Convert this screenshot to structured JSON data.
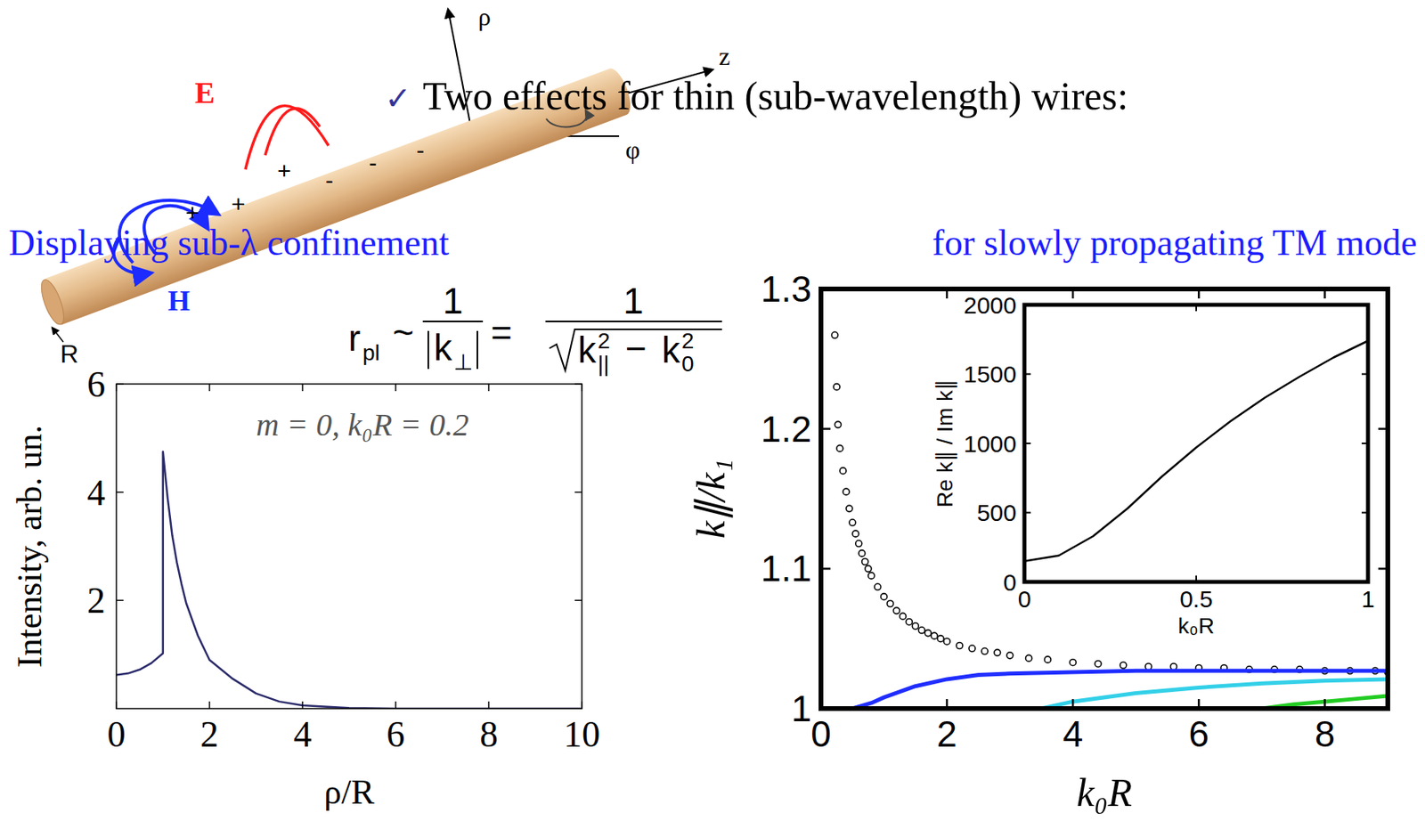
{
  "slide": {
    "bullet_mark": "✓",
    "bullet": "Two effects for thin (sub-wavelength) wires:",
    "headline_left": "Displaying sub-λ confinement",
    "headline_right": "for slowly propagating TM mode",
    "diagram": {
      "axis_labels": [
        "ρ",
        "z",
        "φ"
      ],
      "field_labels": [
        "E",
        "H"
      ],
      "radius_label": "R",
      "charges": [
        "+",
        "+",
        "+",
        "-",
        "-",
        "-"
      ]
    },
    "formula": {
      "symbol": "r",
      "symbol_sub": "pl",
      "relation": "~",
      "numerator": "1",
      "den1": "k",
      "den1_sub": "⊥",
      "equals": "=",
      "den2_a": "k",
      "den2_a_sub": "||",
      "power": "2",
      "minus": "−",
      "den2_b": "k",
      "den2_b_sub": "0"
    }
  },
  "chart_data": [
    {
      "type": "line",
      "annotation": "m = 0, k₀R = 0.2",
      "x_label": "ρ/R",
      "y_label": "Intensity, arb. un.",
      "xlim": [
        0,
        10
      ],
      "ylim": [
        0,
        6
      ],
      "xticks": [
        0,
        2,
        4,
        6,
        8,
        10
      ],
      "yticks": [
        2,
        4,
        6
      ],
      "series": [
        {
          "color": "#2a2a6a",
          "x": [
            0,
            0.25,
            0.5,
            0.75,
            1,
            1,
            1.1,
            1.2,
            1.3,
            1.4,
            1.5,
            1.75,
            2,
            2.5,
            3,
            3.5,
            4,
            5,
            6,
            8,
            10
          ],
          "values": [
            0.62,
            0.65,
            0.72,
            0.84,
            1.02,
            4.75,
            3.9,
            3.2,
            2.7,
            2.3,
            1.95,
            1.35,
            0.9,
            0.55,
            0.28,
            0.13,
            0.06,
            0.01,
            0,
            0,
            0
          ]
        }
      ]
    },
    {
      "type": "line",
      "x_label": "k₀R",
      "y_label": "k∥/k₁",
      "xlim": [
        0,
        9
      ],
      "ylim": [
        1,
        1.3
      ],
      "xticks": [
        0,
        2,
        4,
        6,
        8
      ],
      "yticks": [
        1,
        1.1,
        1.2,
        1.3
      ],
      "series": [
        {
          "type": "scatter",
          "marker": "circle",
          "color": "#000000",
          "x": [
            0.22,
            0.25,
            0.27,
            0.3,
            0.35,
            0.4,
            0.45,
            0.5,
            0.55,
            0.6,
            0.65,
            0.7,
            0.75,
            0.8,
            0.9,
            1.0,
            1.1,
            1.2,
            1.3,
            1.4,
            1.5,
            1.6,
            1.7,
            1.8,
            1.9,
            2,
            2.2,
            2.4,
            2.6,
            2.8,
            3,
            3.3,
            3.6,
            4,
            4.4,
            4.8,
            5.2,
            5.6,
            6,
            6.4,
            6.8,
            7.2,
            7.6,
            8,
            8.4,
            8.8,
            9
          ],
          "values": [
            1.267,
            1.23,
            1.203,
            1.186,
            1.17,
            1.155,
            1.143,
            1.133,
            1.125,
            1.118,
            1.111,
            1.105,
            1.1,
            1.095,
            1.087,
            1.08,
            1.075,
            1.07,
            1.066,
            1.062,
            1.059,
            1.056,
            1.054,
            1.052,
            1.05,
            1.048,
            1.045,
            1.043,
            1.041,
            1.04,
            1.038,
            1.036,
            1.035,
            1.033,
            1.032,
            1.031,
            1.03,
            1.03,
            1.029,
            1.029,
            1.028,
            1.028,
            1.028,
            1.027,
            1.027,
            1.027,
            1.026
          ]
        },
        {
          "type": "line",
          "color": "#1f2dff",
          "x": [
            0.5,
            0.8,
            1,
            1.5,
            2,
            2.5,
            3,
            4,
            5,
            6,
            7,
            8,
            9
          ],
          "values": [
            1.0,
            1.004,
            1.008,
            1.016,
            1.021,
            1.024,
            1.025,
            1.026,
            1.027,
            1.027,
            1.027,
            1.027,
            1.027
          ]
        },
        {
          "type": "line",
          "color": "#33d0e8",
          "x": [
            3.5,
            4,
            5,
            6,
            7,
            8,
            9
          ],
          "values": [
            1.0,
            1.005,
            1.011,
            1.015,
            1.018,
            1.02,
            1.021
          ]
        },
        {
          "type": "line",
          "color": "#22cc22",
          "x": [
            7,
            7.5,
            8,
            8.5,
            9
          ],
          "values": [
            1.0,
            1.003,
            1.005,
            1.007,
            1.009
          ]
        }
      ]
    },
    {
      "type": "line",
      "x_label": "k₀R",
      "y_label": "Re k∥ / Im k∥",
      "xlim": [
        0,
        1
      ],
      "ylim": [
        0,
        2000
      ],
      "xticks": [
        0,
        0.5,
        1
      ],
      "yticks": [
        0,
        500,
        1000,
        1500,
        2000
      ],
      "series": [
        {
          "color": "#000000",
          "x": [
            0,
            0.1,
            0.2,
            0.3,
            0.4,
            0.5,
            0.6,
            0.7,
            0.8,
            0.9,
            1
          ],
          "values": [
            150,
            190,
            330,
            530,
            760,
            970,
            1160,
            1330,
            1480,
            1620,
            1740
          ]
        }
      ]
    }
  ]
}
